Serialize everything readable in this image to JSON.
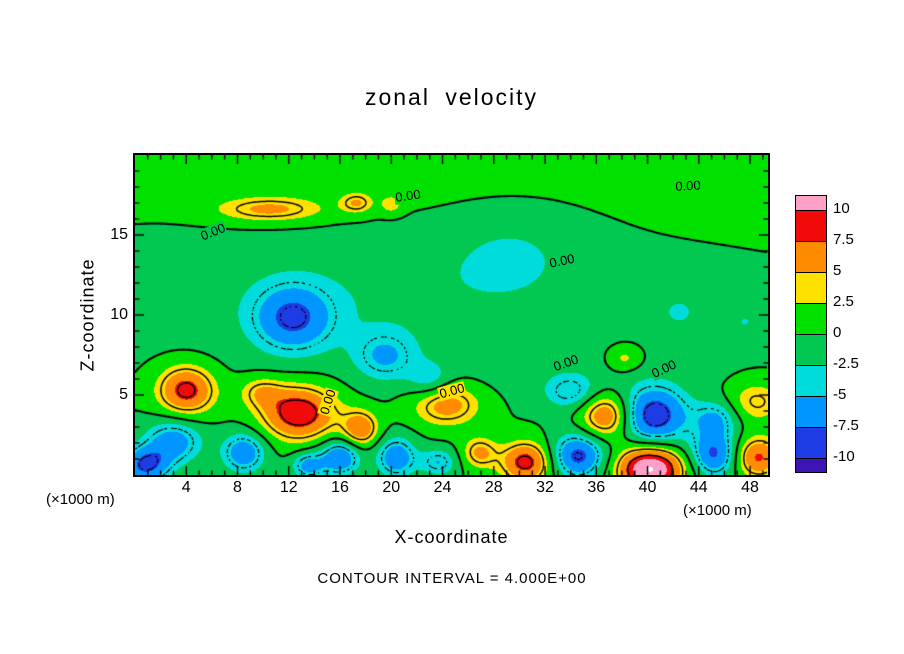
{
  "title": "zonal velocity",
  "axes": {
    "x_label": "X-coordinate",
    "y_label": "Z-coordinate",
    "x_unit_left": "(×1000 m)",
    "x_unit_right": "(×1000 m)"
  },
  "footer_note": "CONTOUR INTERVAL = 4.000E+00",
  "chart_data": {
    "type": "heatmap",
    "subtype": "filled_contour",
    "title": "zonal velocity",
    "xlabel": "X-coordinate",
    "ylabel": "Z-coordinate",
    "x_range": [
      0,
      49.4
    ],
    "z_range": [
      0,
      20
    ],
    "x_major_ticks": [
      4,
      8,
      12,
      16,
      20,
      24,
      28,
      32,
      36,
      40,
      44,
      48
    ],
    "z_major_ticks": [
      5,
      10,
      15
    ],
    "minor_tick_step": 1,
    "contour_interval": 4.0,
    "fill_levels": [
      -10,
      -7.5,
      -5,
      -2.5,
      0,
      2.5,
      5,
      7.5,
      10
    ],
    "fill_colors": [
      "#3C14B4",
      "#1E3CE6",
      "#0096FF",
      "#00DCDC",
      "#00C850",
      "#00E100",
      "#FFE100",
      "#FF8C00",
      "#F00A0A",
      "#FFA0C8"
    ],
    "white_above": 13,
    "line_levels_solid": [
      0,
      4,
      8
    ],
    "line_levels_dashed": [
      -8,
      -4
    ],
    "colorbar_labels": [
      "10",
      "7.5",
      "5",
      "2.5",
      "0",
      "-2.5",
      "-5",
      "-7.5",
      "-10"
    ],
    "field_model": {
      "note": "estimated velocity field as sum of gaussian features [x, z, amplitude, rx, rz]",
      "background": [
        [
          24,
          21.5,
          1.8,
          26,
          3.2
        ],
        [
          18,
          11,
          -2.0,
          13,
          3
        ],
        [
          29.5,
          14.0,
          -2.2,
          4,
          2.2
        ],
        [
          36,
          6.8,
          -0.8,
          8,
          1.5
        ]
      ],
      "blobs": [
        [
          10.5,
          16.6,
          5.5,
          3.0,
          0.55
        ],
        [
          17.3,
          17.0,
          4.8,
          0.9,
          0.45
        ],
        [
          20.0,
          16.9,
          3.6,
          0.6,
          0.4
        ],
        [
          12.3,
          9.8,
          -7.0,
          2.2,
          1.5
        ],
        [
          19.5,
          7.4,
          -4.6,
          1.7,
          1.1
        ],
        [
          23.0,
          5.9,
          -3.6,
          1.2,
          0.8
        ],
        [
          34.0,
          5.2,
          -4.6,
          1.5,
          0.8
        ],
        [
          38.2,
          7.3,
          3.8,
          1.0,
          0.6
        ],
        [
          42.5,
          10.2,
          -2.6,
          1.2,
          0.8
        ],
        [
          47.6,
          9.6,
          -2.4,
          0.9,
          0.7
        ],
        [
          4.0,
          5.3,
          9.0,
          1.6,
          1.1
        ],
        [
          3.0,
          2.1,
          -6.5,
          1.6,
          1.0
        ],
        [
          0.8,
          0.6,
          -8.0,
          1.3,
          0.8
        ],
        [
          8.5,
          1.4,
          -7.0,
          1.2,
          0.9
        ],
        [
          12.8,
          3.9,
          10.0,
          2.1,
          1.2
        ],
        [
          9.8,
          5.2,
          4.0,
          1.2,
          0.7
        ],
        [
          16.0,
          1.1,
          -7.5,
          1.1,
          0.8
        ],
        [
          13.5,
          0.6,
          -6.0,
          0.9,
          0.6
        ],
        [
          17.6,
          2.9,
          7.0,
          1.0,
          0.8
        ],
        [
          20.4,
          1.1,
          -7.0,
          1.1,
          0.9
        ],
        [
          24.3,
          4.4,
          6.5,
          1.9,
          0.95
        ],
        [
          23.7,
          0.8,
          -5.0,
          1.0,
          0.6
        ],
        [
          26.9,
          1.4,
          5.5,
          0.95,
          0.7
        ],
        [
          30.5,
          0.8,
          9.0,
          1.4,
          0.9
        ],
        [
          34.6,
          1.2,
          -8.5,
          1.5,
          1.0
        ],
        [
          36.8,
          3.7,
          8.0,
          1.4,
          1.0
        ],
        [
          40.5,
          3.7,
          -9.5,
          1.9,
          1.3
        ],
        [
          40.2,
          0.4,
          13.5,
          1.8,
          1.0
        ],
        [
          45.2,
          1.3,
          -8.0,
          1.3,
          1.0
        ],
        [
          48.6,
          1.1,
          8.0,
          1.3,
          0.9
        ],
        [
          48.5,
          4.6,
          4.5,
          1.5,
          0.9
        ],
        [
          45.3,
          3.5,
          -5.0,
          1.2,
          0.8
        ]
      ]
    },
    "contour_labels": [
      {
        "text": "0.00",
        "fx": 0.431,
        "fy": 0.128,
        "rot": -8
      },
      {
        "text": "0.00",
        "fx": 0.874,
        "fy": 0.097,
        "rot": -3
      },
      {
        "text": "0.00",
        "fx": 0.123,
        "fy": 0.24,
        "rot": -22
      },
      {
        "text": "0.00",
        "fx": 0.675,
        "fy": 0.331,
        "rot": -12
      },
      {
        "text": "0.00",
        "fx": 0.305,
        "fy": 0.772,
        "rot": -72
      },
      {
        "text": "0.00",
        "fx": 0.501,
        "fy": 0.737,
        "rot": -15
      },
      {
        "text": "0.00",
        "fx": 0.681,
        "fy": 0.65,
        "rot": -20
      },
      {
        "text": "0.00",
        "fx": 0.836,
        "fy": 0.669,
        "rot": -25
      }
    ]
  }
}
